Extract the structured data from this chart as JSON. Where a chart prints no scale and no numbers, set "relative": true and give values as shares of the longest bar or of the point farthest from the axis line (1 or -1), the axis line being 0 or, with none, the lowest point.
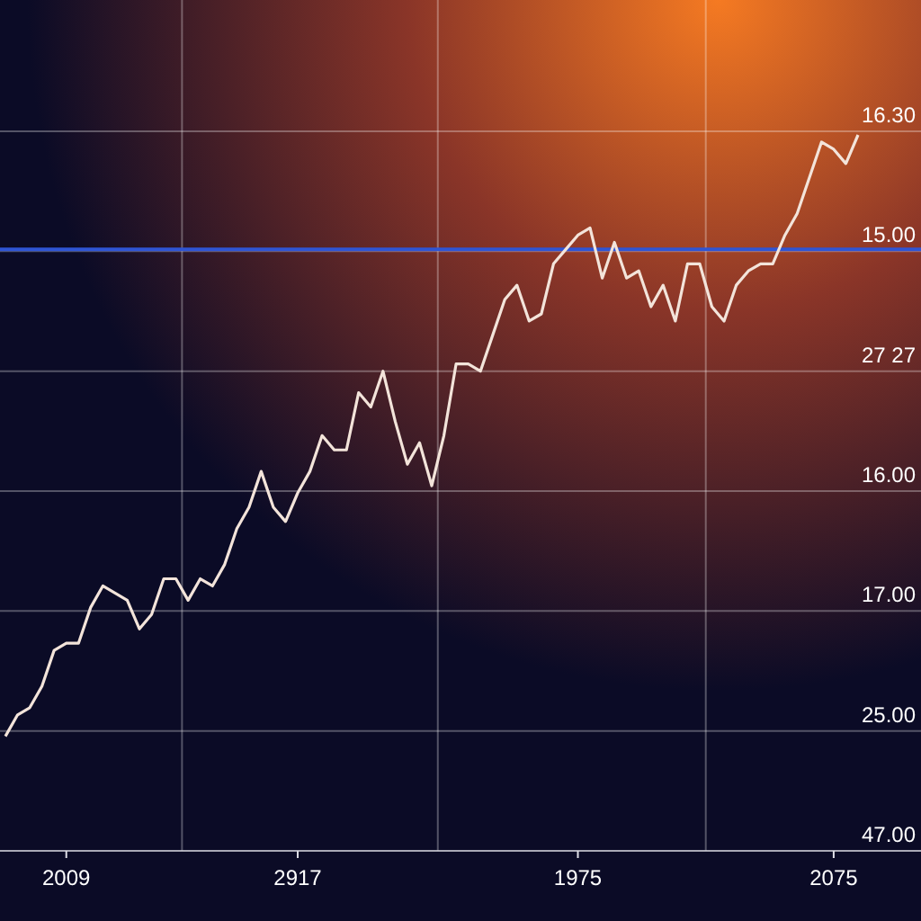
{
  "chart_data": {
    "type": "line",
    "relative": true,
    "grid": true,
    "marker": "none",
    "line_style": "solid",
    "categories": [
      null,
      null,
      null,
      null,
      null,
      "2009",
      null,
      null,
      null,
      null,
      null,
      null,
      null,
      null,
      null,
      null,
      null,
      null,
      null,
      null,
      null,
      null,
      null,
      null,
      "2917",
      null,
      null,
      null,
      null,
      null,
      null,
      null,
      null,
      null,
      null,
      null,
      null,
      null,
      null,
      null,
      null,
      null,
      null,
      null,
      null,
      null,
      null,
      "1975",
      null,
      null,
      null,
      null,
      null,
      null,
      null,
      null,
      null,
      null,
      null,
      null,
      null,
      null,
      null,
      null,
      null,
      null,
      null,
      null,
      "2075",
      null,
      null
    ],
    "series": [
      {
        "color": "#f3e4da",
        "values": [
          0.16,
          0.19,
          0.2,
          0.23,
          0.28,
          0.29,
          0.29,
          0.34,
          0.37,
          0.36,
          0.35,
          0.31,
          0.33,
          0.38,
          0.38,
          0.35,
          0.38,
          0.37,
          0.4,
          0.45,
          0.48,
          0.53,
          0.48,
          0.46,
          0.5,
          0.53,
          0.58,
          0.56,
          0.56,
          0.64,
          0.62,
          0.67,
          0.6,
          0.54,
          0.57,
          0.51,
          0.58,
          0.68,
          0.68,
          0.67,
          0.72,
          0.77,
          0.79,
          0.74,
          0.75,
          0.82,
          0.84,
          0.86,
          0.87,
          0.8,
          0.85,
          0.8,
          0.81,
          0.76,
          0.79,
          0.74,
          0.82,
          0.82,
          0.76,
          0.74,
          0.79,
          0.81,
          0.82,
          0.82,
          0.86,
          0.89,
          0.94,
          0.99,
          0.98,
          0.96,
          1.0
        ]
      }
    ],
    "ref_lines": [
      {
        "axis": "y",
        "value": 0.84,
        "color": "#2f55d4"
      }
    ],
    "annotations": [
      "16.30",
      "15.00",
      "27 27",
      "16.00",
      "17.00",
      "25.00",
      "47.00"
    ]
  }
}
